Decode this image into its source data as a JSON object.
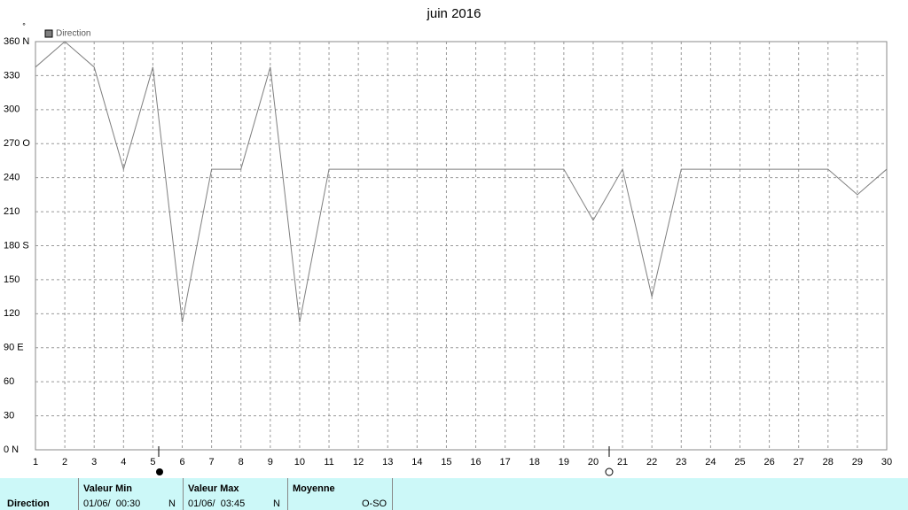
{
  "chart_data": {
    "type": "line",
    "title": "juin 2016",
    "y_unit": "°",
    "x": [
      1,
      2,
      3,
      4,
      5,
      6,
      7,
      8,
      9,
      10,
      11,
      12,
      13,
      14,
      15,
      16,
      17,
      18,
      19,
      20,
      21,
      22,
      23,
      24,
      25,
      26,
      27,
      28,
      29,
      30
    ],
    "xlim": [
      1,
      30
    ],
    "xticks": [
      1,
      2,
      3,
      4,
      5,
      6,
      7,
      8,
      9,
      10,
      11,
      12,
      13,
      14,
      15,
      16,
      17,
      18,
      19,
      20,
      21,
      22,
      23,
      24,
      25,
      26,
      27,
      28,
      29,
      30
    ],
    "series": [
      {
        "name": "Direction",
        "color": "#7f7f7f",
        "values": [
          337.5,
          360,
          337.5,
          247.5,
          337.5,
          112.5,
          247.5,
          247.5,
          337.5,
          112.5,
          247.5,
          247.5,
          247.5,
          247.5,
          247.5,
          247.5,
          247.5,
          247.5,
          247.5,
          202.5,
          247.5,
          135,
          247.5,
          247.5,
          247.5,
          247.5,
          247.5,
          247.5,
          225,
          247.5
        ]
      }
    ],
    "ylim": [
      0,
      360
    ],
    "yticks": [
      {
        "value": 0,
        "label": "0  N"
      },
      30,
      60,
      {
        "value": 90,
        "label": "90  E"
      },
      120,
      150,
      {
        "value": 180,
        "label": "180 S"
      },
      210,
      240,
      {
        "value": 270,
        "label": "270 O"
      },
      300,
      330,
      {
        "value": 360,
        "label": "360 N"
      }
    ],
    "grid": true,
    "legend": "top-left"
  },
  "stats": {
    "row_label": "Direction",
    "min": {
      "header": "Valeur Min",
      "date": "01/06/  00:30",
      "value": "N"
    },
    "max": {
      "header": "Valeur Max",
      "date": "01/06/  03:45",
      "value": "N"
    },
    "mean": {
      "header": "Moyenne",
      "value": "O-SO"
    }
  }
}
